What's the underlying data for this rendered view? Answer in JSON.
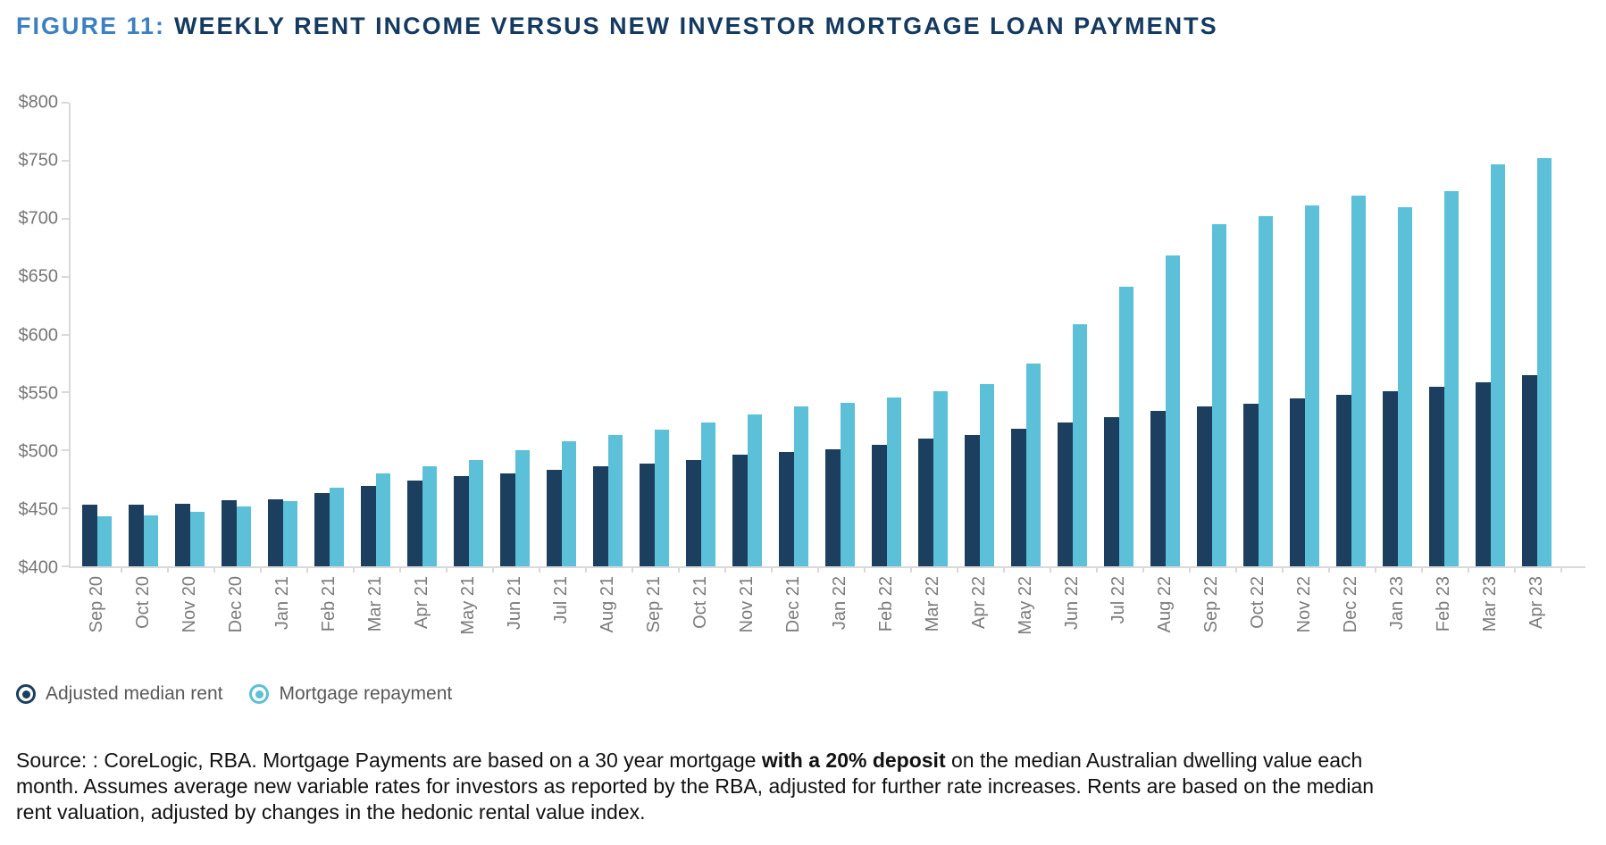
{
  "title": {
    "prefix": "FIGURE 11:",
    "main": "WEEKLY RENT INCOME VERSUS NEW INVESTOR MORTGAGE LOAN PAYMENTS"
  },
  "colors": {
    "rent": "#1c3f5f",
    "mortgage": "#5bc0d8",
    "title_prefix": "#3c80c2",
    "title_main": "#153a60",
    "axis_line": "#d9d9d9",
    "tick_label": "#767676",
    "legend_text": "#595959"
  },
  "chart_data": {
    "type": "bar",
    "title": "Weekly rent income versus new investor mortgage loan payments",
    "xlabel": "",
    "ylabel": "",
    "ylim": [
      400,
      800
    ],
    "ytick_step": 50,
    "ytick_labels": [
      "$800",
      "$750",
      "$700",
      "$650",
      "$600",
      "$550",
      "$500",
      "$450",
      "$400"
    ],
    "grid": false,
    "legend_position": "bottom-left",
    "categories": [
      "Sep 20",
      "Oct 20",
      "Nov 20",
      "Dec 20",
      "Jan 21",
      "Feb 21",
      "Mar 21",
      "Apr 21",
      "May 21",
      "Jun 21",
      "Jul 21",
      "Aug 21",
      "Sep 21",
      "Oct 21",
      "Nov 21",
      "Dec 21",
      "Jan 22",
      "Feb 22",
      "Mar 22",
      "Apr 22",
      "May 22",
      "Jun 22",
      "Jul 22",
      "Aug 22",
      "Sep 22",
      "Oct 22",
      "Nov 22",
      "Dec 22",
      "Jan 23",
      "Feb 23",
      "Mar 23",
      "Apr 23"
    ],
    "series": [
      {
        "name": "Adjusted median rent",
        "color": "#1c3f5f",
        "values": [
          453,
          453,
          454,
          457,
          458,
          463,
          469,
          474,
          478,
          480,
          483,
          486,
          489,
          492,
          496,
          499,
          501,
          505,
          510,
          513,
          519,
          524,
          529,
          534,
          538,
          540,
          545,
          548,
          551,
          555,
          559,
          565
        ]
      },
      {
        "name": "Mortgage repayment",
        "color": "#5bc0d8",
        "values": [
          443,
          444,
          447,
          452,
          456,
          468,
          480,
          486,
          492,
          500,
          508,
          513,
          518,
          524,
          531,
          538,
          541,
          546,
          551,
          557,
          575,
          609,
          641,
          668,
          695,
          702,
          711,
          720,
          710,
          724,
          747,
          752
        ]
      }
    ]
  },
  "legend": {
    "items": [
      {
        "label": "Adjusted median rent",
        "color": "#1c3f5f"
      },
      {
        "label": "Mortgage repayment",
        "color": "#5bc0d8"
      }
    ]
  },
  "source": {
    "pre": "Source: : CoreLogic, RBA. Mortgage Payments are based on a 30 year mortgage ",
    "bold": "with a 20% deposit",
    "post": " on the median Australian dwelling value each month. Assumes average new variable rates for investors as reported by the RBA, adjusted for further rate increases. Rents are based on the median rent valuation, adjusted by changes in the hedonic rental value index."
  }
}
